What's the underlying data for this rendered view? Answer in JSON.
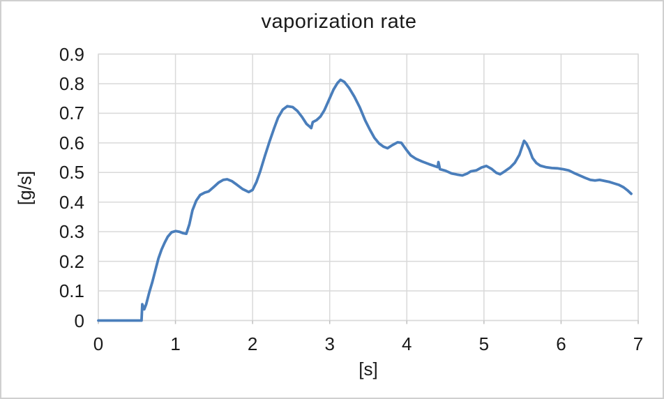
{
  "chart_data": {
    "type": "line",
    "title": "vaporization rate",
    "xlabel": "[s]",
    "ylabel": "[g/s]",
    "xlim": [
      0,
      7
    ],
    "ylim": [
      0,
      0.9
    ],
    "grid": true,
    "legend": "none",
    "line_color": "#4A7EBB",
    "grid_color": "#D9D9D9",
    "tick_mark_color": "#BFBFBF",
    "xticks": [
      {
        "value": 0,
        "label": "0"
      },
      {
        "value": 1,
        "label": "1"
      },
      {
        "value": 2,
        "label": "2"
      },
      {
        "value": 3,
        "label": "3"
      },
      {
        "value": 4,
        "label": "4"
      },
      {
        "value": 5,
        "label": "5"
      },
      {
        "value": 6,
        "label": "6"
      },
      {
        "value": 7,
        "label": "7"
      }
    ],
    "yticks": [
      {
        "value": 0.0,
        "label": "0"
      },
      {
        "value": 0.1,
        "label": "0.1"
      },
      {
        "value": 0.2,
        "label": "0.2"
      },
      {
        "value": 0.3,
        "label": "0.3"
      },
      {
        "value": 0.4,
        "label": "0.4"
      },
      {
        "value": 0.5,
        "label": "0.5"
      },
      {
        "value": 0.6,
        "label": "0.6"
      },
      {
        "value": 0.7,
        "label": "0.7"
      },
      {
        "value": 0.8,
        "label": "0.8"
      },
      {
        "value": 0.9,
        "label": "0.9"
      }
    ],
    "points": [
      [
        0.0,
        0.0
      ],
      [
        0.15,
        0.0
      ],
      [
        0.3,
        0.0
      ],
      [
        0.45,
        0.0
      ],
      [
        0.56,
        0.0
      ],
      [
        0.57,
        0.055
      ],
      [
        0.595,
        0.038
      ],
      [
        0.62,
        0.055
      ],
      [
        0.66,
        0.095
      ],
      [
        0.7,
        0.13
      ],
      [
        0.74,
        0.17
      ],
      [
        0.78,
        0.21
      ],
      [
        0.82,
        0.24
      ],
      [
        0.86,
        0.263
      ],
      [
        0.9,
        0.283
      ],
      [
        0.95,
        0.298
      ],
      [
        1.0,
        0.302
      ],
      [
        1.05,
        0.3
      ],
      [
        1.1,
        0.295
      ],
      [
        1.14,
        0.293
      ],
      [
        1.18,
        0.325
      ],
      [
        1.22,
        0.372
      ],
      [
        1.27,
        0.405
      ],
      [
        1.32,
        0.424
      ],
      [
        1.38,
        0.432
      ],
      [
        1.43,
        0.436
      ],
      [
        1.5,
        0.452
      ],
      [
        1.56,
        0.466
      ],
      [
        1.62,
        0.475
      ],
      [
        1.67,
        0.477
      ],
      [
        1.73,
        0.471
      ],
      [
        1.8,
        0.458
      ],
      [
        1.87,
        0.444
      ],
      [
        1.95,
        0.434
      ],
      [
        2.0,
        0.441
      ],
      [
        2.05,
        0.468
      ],
      [
        2.1,
        0.505
      ],
      [
        2.16,
        0.556
      ],
      [
        2.22,
        0.605
      ],
      [
        2.28,
        0.65
      ],
      [
        2.33,
        0.685
      ],
      [
        2.39,
        0.712
      ],
      [
        2.45,
        0.724
      ],
      [
        2.52,
        0.721
      ],
      [
        2.58,
        0.708
      ],
      [
        2.64,
        0.688
      ],
      [
        2.7,
        0.664
      ],
      [
        2.74,
        0.655
      ],
      [
        2.76,
        0.65
      ],
      [
        2.78,
        0.67
      ],
      [
        2.83,
        0.677
      ],
      [
        2.88,
        0.689
      ],
      [
        2.93,
        0.71
      ],
      [
        2.99,
        0.745
      ],
      [
        3.05,
        0.78
      ],
      [
        3.1,
        0.802
      ],
      [
        3.14,
        0.813
      ],
      [
        3.19,
        0.806
      ],
      [
        3.25,
        0.786
      ],
      [
        3.32,
        0.756
      ],
      [
        3.39,
        0.72
      ],
      [
        3.46,
        0.676
      ],
      [
        3.52,
        0.645
      ],
      [
        3.58,
        0.617
      ],
      [
        3.64,
        0.598
      ],
      [
        3.7,
        0.587
      ],
      [
        3.75,
        0.582
      ],
      [
        3.81,
        0.592
      ],
      [
        3.88,
        0.602
      ],
      [
        3.93,
        0.6
      ],
      [
        3.99,
        0.578
      ],
      [
        4.05,
        0.558
      ],
      [
        4.12,
        0.546
      ],
      [
        4.2,
        0.537
      ],
      [
        4.29,
        0.528
      ],
      [
        4.38,
        0.52
      ],
      [
        4.4,
        0.518
      ],
      [
        4.41,
        0.535
      ],
      [
        4.43,
        0.511
      ],
      [
        4.5,
        0.506
      ],
      [
        4.58,
        0.497
      ],
      [
        4.65,
        0.493
      ],
      [
        4.72,
        0.49
      ],
      [
        4.78,
        0.496
      ],
      [
        4.83,
        0.504
      ],
      [
        4.9,
        0.507
      ],
      [
        4.97,
        0.517
      ],
      [
        5.03,
        0.522
      ],
      [
        5.1,
        0.512
      ],
      [
        5.16,
        0.499
      ],
      [
        5.21,
        0.494
      ],
      [
        5.27,
        0.504
      ],
      [
        5.34,
        0.517
      ],
      [
        5.4,
        0.533
      ],
      [
        5.46,
        0.56
      ],
      [
        5.49,
        0.583
      ],
      [
        5.52,
        0.607
      ],
      [
        5.55,
        0.598
      ],
      [
        5.59,
        0.577
      ],
      [
        5.63,
        0.549
      ],
      [
        5.68,
        0.532
      ],
      [
        5.73,
        0.523
      ],
      [
        5.8,
        0.518
      ],
      [
        5.88,
        0.515
      ],
      [
        5.95,
        0.514
      ],
      [
        6.03,
        0.511
      ],
      [
        6.1,
        0.507
      ],
      [
        6.17,
        0.498
      ],
      [
        6.24,
        0.49
      ],
      [
        6.31,
        0.482
      ],
      [
        6.38,
        0.475
      ],
      [
        6.44,
        0.473
      ],
      [
        6.5,
        0.475
      ],
      [
        6.56,
        0.472
      ],
      [
        6.63,
        0.468
      ],
      [
        6.69,
        0.463
      ],
      [
        6.75,
        0.458
      ],
      [
        6.81,
        0.45
      ],
      [
        6.86,
        0.44
      ],
      [
        6.91,
        0.428
      ]
    ]
  }
}
